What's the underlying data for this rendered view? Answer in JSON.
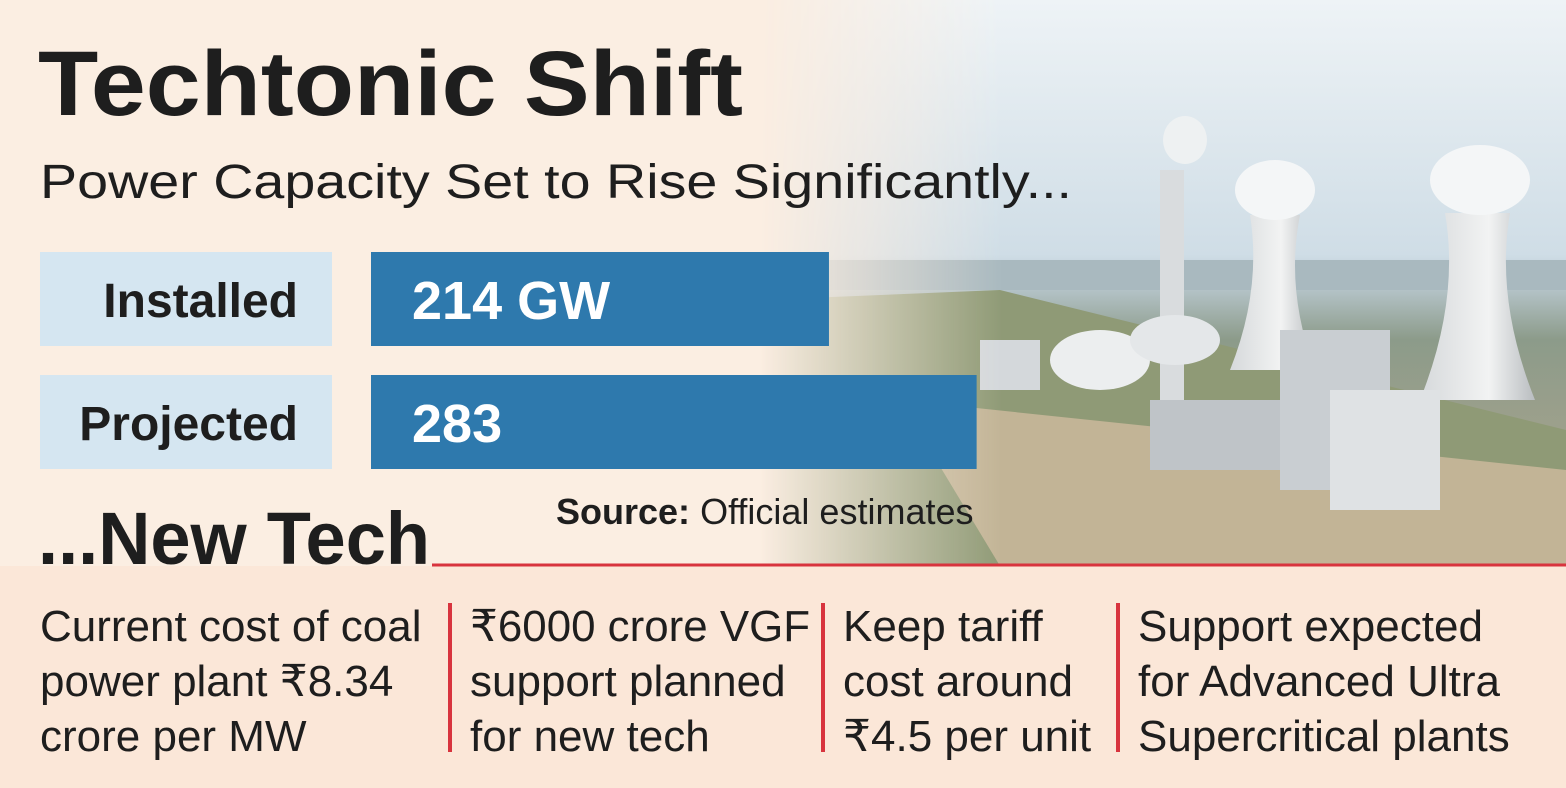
{
  "chart_data": {
    "type": "bar",
    "orientation": "horizontal",
    "title": "Techtonic Shift",
    "subtitle": "Power Capacity Set to Rise Significantly...",
    "categories": [
      "Installed",
      "Projected"
    ],
    "values": [
      214,
      283
    ],
    "value_labels": [
      "214 GW",
      "283"
    ],
    "color": "#2e79ad",
    "label_box_color": "#d5e6f1",
    "source": {
      "label": "Source:",
      "text": "Official estimates"
    }
  },
  "new_tech": {
    "heading": "...New Tech",
    "items": [
      [
        "Current cost of coal",
        "power plant ₹8.34",
        "crore per MW"
      ],
      [
        "₹6000 crore VGF",
        "support planned",
        "for new tech"
      ],
      [
        "Keep tariff",
        "cost around",
        "₹4.5 per unit"
      ],
      [
        "Support expected",
        "for Advanced Ultra",
        "Supercritical plants"
      ]
    ]
  }
}
